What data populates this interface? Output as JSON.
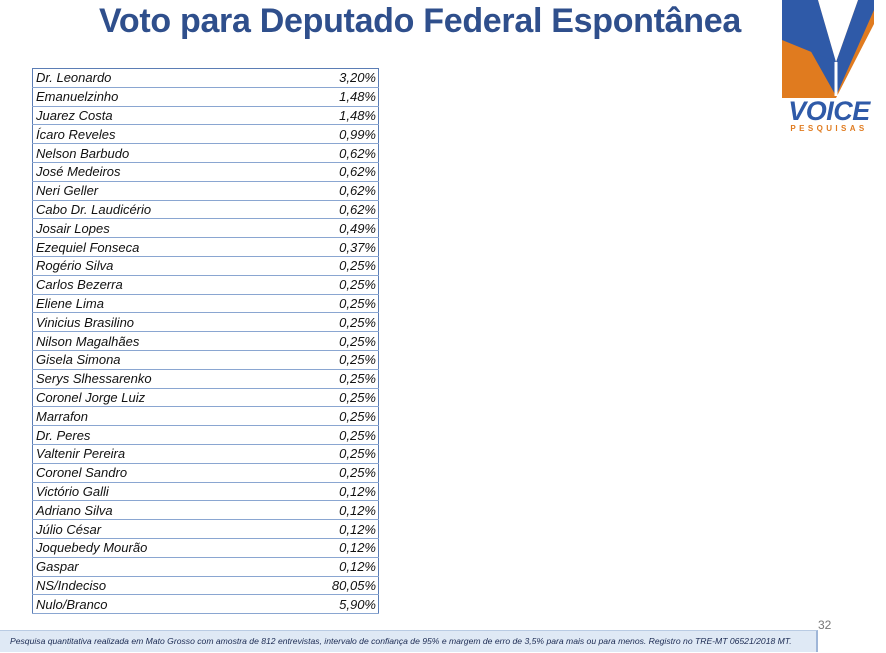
{
  "slide": {
    "title": "Voto para Deputado Federal Espontânea",
    "page_number": "32",
    "footer_note": "Pesquisa quantitativa realizada em Mato Grosso com  amostra de 812 entrevistas, intervalo de confiança de 95% e margem de erro de 3,5% para mais ou para menos. Registro no TRE-MT  06521/2018 MT."
  },
  "logo": {
    "word": "VOICE",
    "sub": "PESQUISAS",
    "colors": {
      "blue": "#2f5aa8",
      "orange": "#e07b1f"
    }
  },
  "rows": [
    {
      "name": "Dr. Leonardo",
      "value": "3,20%"
    },
    {
      "name": "Emanuelzinho",
      "value": "1,48%"
    },
    {
      "name": "Juarez Costa",
      "value": "1,48%"
    },
    {
      "name": "Ícaro Reveles",
      "value": "0,99%"
    },
    {
      "name": "Nelson Barbudo",
      "value": "0,62%"
    },
    {
      "name": "José Medeiros",
      "value": "0,62%"
    },
    {
      "name": "Neri Geller",
      "value": "0,62%"
    },
    {
      "name": "Cabo Dr. Laudicério",
      "value": "0,62%"
    },
    {
      "name": "Josair Lopes",
      "value": "0,49%"
    },
    {
      "name": "Ezequiel Fonseca",
      "value": "0,37%"
    },
    {
      "name": "Rogério Silva",
      "value": "0,25%"
    },
    {
      "name": "Carlos Bezerra",
      "value": "0,25%"
    },
    {
      "name": "Eliene Lima",
      "value": "0,25%"
    },
    {
      "name": "Vinicius Brasilino",
      "value": "0,25%"
    },
    {
      "name": "Nilson Magalhães",
      "value": "0,25%"
    },
    {
      "name": "Gisela Simona",
      "value": "0,25%"
    },
    {
      "name": "Serys Slhessarenko",
      "value": "0,25%"
    },
    {
      "name": "Coronel Jorge Luiz",
      "value": "0,25%"
    },
    {
      "name": "Marrafon",
      "value": "0,25%"
    },
    {
      "name": "Dr. Peres",
      "value": "0,25%"
    },
    {
      "name": "Valtenir Pereira",
      "value": "0,25%"
    },
    {
      "name": "Coronel Sandro",
      "value": "0,25%"
    },
    {
      "name": "Victório Galli",
      "value": "0,12%"
    },
    {
      "name": "Adriano Silva",
      "value": "0,12%"
    },
    {
      "name": "Júlio César",
      "value": "0,12%"
    },
    {
      "name": "Joquebedy Mourão",
      "value": "0,12%"
    },
    {
      "name": "Gaspar",
      "value": "0,12%"
    },
    {
      "name": "NS/Indeciso",
      "value": "80,05%"
    },
    {
      "name": "Nulo/Branco",
      "value": "5,90%"
    }
  ]
}
